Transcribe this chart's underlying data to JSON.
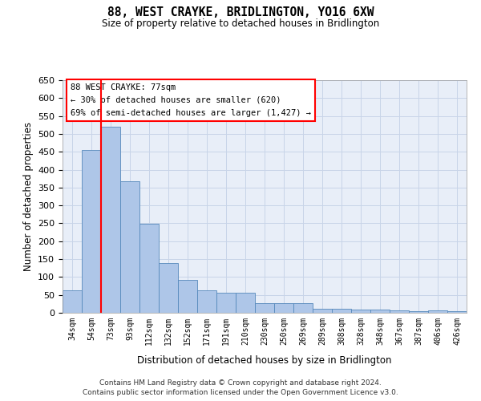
{
  "title": "88, WEST CRAYKE, BRIDLINGTON, YO16 6XW",
  "subtitle": "Size of property relative to detached houses in Bridlington",
  "xlabel": "Distribution of detached houses by size in Bridlington",
  "ylabel": "Number of detached properties",
  "categories": [
    "34sqm",
    "54sqm",
    "73sqm",
    "93sqm",
    "112sqm",
    "132sqm",
    "152sqm",
    "171sqm",
    "191sqm",
    "210sqm",
    "230sqm",
    "250sqm",
    "269sqm",
    "289sqm",
    "308sqm",
    "328sqm",
    "348sqm",
    "367sqm",
    "387sqm",
    "406sqm",
    "426sqm"
  ],
  "values": [
    62,
    456,
    521,
    368,
    249,
    140,
    91,
    63,
    57,
    55,
    27,
    26,
    27,
    11,
    12,
    9,
    8,
    6,
    5,
    7,
    5
  ],
  "bar_color": "#aec6e8",
  "bar_edge_color": "#5588bb",
  "ylim": [
    0,
    650
  ],
  "yticks": [
    0,
    50,
    100,
    150,
    200,
    250,
    300,
    350,
    400,
    450,
    500,
    550,
    600,
    650
  ],
  "property_label": "88 WEST CRAYKE: 77sqm",
  "annotation_line1": "← 30% of detached houses are smaller (620)",
  "annotation_line2": "69% of semi-detached houses are larger (1,427) →",
  "vline_x_pos": 1.5,
  "background_color": "#ffffff",
  "axes_bg_color": "#e8eef8",
  "grid_color": "#c8d4e8",
  "footer_line1": "Contains HM Land Registry data © Crown copyright and database right 2024.",
  "footer_line2": "Contains public sector information licensed under the Open Government Licence v3.0."
}
